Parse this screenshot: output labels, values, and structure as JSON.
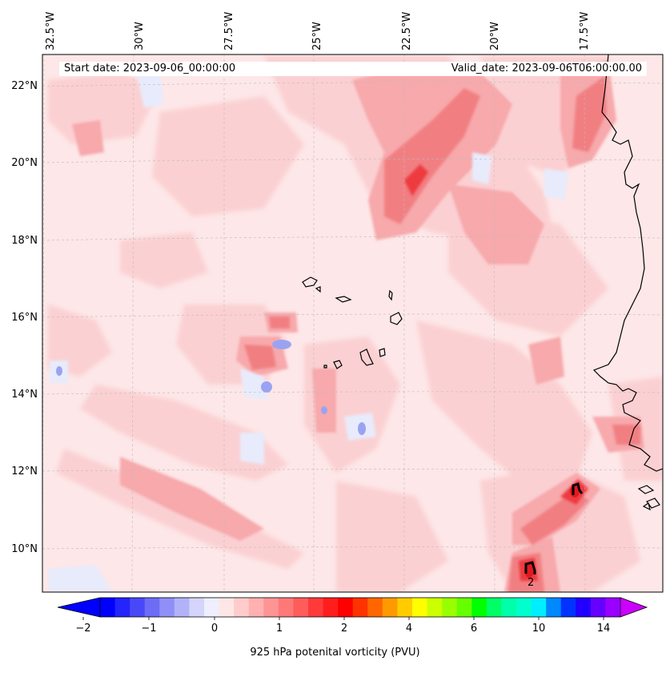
{
  "header": {
    "start_date": "Start date: 2023-09-06_00:00:00",
    "valid_date": "Valid_date: 2023-09-06T06:00:00.00"
  },
  "map": {
    "lon_labels": [
      "32.5°W",
      "30°W",
      "27.5°W",
      "25°W",
      "22.5°W",
      "20°W",
      "17.5°W"
    ],
    "lat_labels": [
      "22°N",
      "20°N",
      "18°N",
      "16°N",
      "14°N",
      "12°N",
      "10°N"
    ],
    "contour_label": "2",
    "colors": {
      "background": "#fde7e8",
      "light_pink": "#fbd0d2",
      "pink": "#f7a9ac",
      "salmon": "#f17f82",
      "red": "#ee3a3f",
      "deep_red": "#e21a1f",
      "light_blue": "#e8ebfb",
      "blue": "#9aa3f2",
      "coast": "#000000"
    }
  },
  "colorbar": {
    "ticks": [
      "−2",
      "−1",
      "0",
      "1",
      "2",
      "4",
      "6",
      "10",
      "14"
    ],
    "label": "925 hPa potenital vorticity (PVU)",
    "colors": [
      "#0000ff",
      "#2424fb",
      "#4848f8",
      "#6c6cf6",
      "#8f8ff7",
      "#b2b2f9",
      "#d5d5fb",
      "#eeeeff",
      "#ffe6e6",
      "#ffcccc",
      "#ffb0b0",
      "#ff9494",
      "#ff7878",
      "#ff5c5c",
      "#ff3a3a",
      "#ff1e1e",
      "#ff0000",
      "#ff3300",
      "#ff6600",
      "#ff9900",
      "#ffcc00",
      "#ffff00",
      "#ccff00",
      "#99ff00",
      "#66ff00",
      "#00ff00",
      "#00ff66",
      "#00ffaa",
      "#00ffcc",
      "#00eeff",
      "#0088ff",
      "#0033ff",
      "#2200ff",
      "#6600ff",
      "#9900ff"
    ],
    "min_color": "#0000ff",
    "max_color": "#cc00ff"
  }
}
